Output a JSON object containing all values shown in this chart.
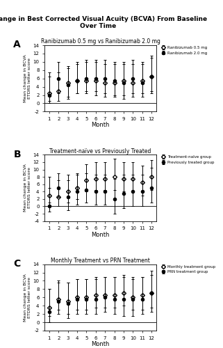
{
  "title": "Change in Best Corrected Visual Acuity (BCVA) From Baseline\nOver Time",
  "months": [
    1,
    2,
    3,
    4,
    5,
    6,
    7,
    8,
    9,
    10,
    11,
    12
  ],
  "panel_A_title": "Ranibizumab 0.5 mg vs Ranibizumab 2.0 mg",
  "A_white_mean": [
    2.5,
    3.0,
    5.0,
    5.5,
    5.5,
    5.5,
    5.0,
    5.0,
    5.5,
    5.0,
    5.5,
    6.5
  ],
  "A_white_err_lo": [
    2.0,
    2.5,
    3.5,
    3.0,
    3.0,
    3.5,
    3.5,
    3.5,
    3.5,
    3.5,
    3.0,
    3.5
  ],
  "A_white_err_hi": [
    5.0,
    4.5,
    4.0,
    4.5,
    4.5,
    4.5,
    4.5,
    4.5,
    4.5,
    4.5,
    4.5,
    5.0
  ],
  "A_black_mean": [
    2.0,
    6.0,
    4.5,
    5.5,
    6.0,
    6.0,
    6.0,
    5.5,
    5.0,
    6.0,
    5.0,
    6.5
  ],
  "A_black_err_lo": [
    2.0,
    3.5,
    3.5,
    3.0,
    3.0,
    3.0,
    3.5,
    3.5,
    4.0,
    3.5,
    3.5,
    4.0
  ],
  "A_black_err_hi": [
    4.5,
    4.0,
    4.0,
    4.0,
    4.5,
    4.5,
    4.5,
    4.5,
    4.5,
    4.5,
    4.5,
    4.5
  ],
  "A_ylim": [
    -2,
    14
  ],
  "A_yticks": [
    -2,
    0,
    2,
    4,
    6,
    8,
    10,
    12,
    14
  ],
  "A_legend1": "Ranibizumab 0.5 mg",
  "A_legend2": "Ranibizumab 2.0 mg",
  "panel_B_title": "Treatment-naïve vs Previously Treated",
  "B_white_mean": [
    3.0,
    2.5,
    4.0,
    5.0,
    7.0,
    7.5,
    7.5,
    8.0,
    7.5,
    7.5,
    6.5,
    8.0
  ],
  "B_white_err_lo": [
    2.0,
    2.5,
    3.0,
    3.0,
    3.0,
    3.0,
    3.0,
    3.5,
    3.5,
    3.5,
    3.5,
    3.5
  ],
  "B_white_err_hi": [
    5.0,
    4.5,
    4.5,
    4.0,
    4.5,
    4.5,
    4.5,
    5.0,
    4.5,
    4.5,
    4.5,
    4.5
  ],
  "B_black_mean": [
    0.0,
    5.0,
    2.5,
    4.0,
    4.5,
    4.0,
    4.0,
    2.0,
    3.5,
    4.0,
    4.0,
    5.0
  ],
  "B_black_err_lo": [
    1.5,
    2.5,
    3.5,
    3.5,
    3.5,
    3.5,
    3.5,
    4.0,
    4.0,
    4.0,
    4.0,
    4.0
  ],
  "B_black_err_hi": [
    5.0,
    4.0,
    4.5,
    4.5,
    4.5,
    4.5,
    4.5,
    5.5,
    5.0,
    4.5,
    4.5,
    5.5
  ],
  "B_ylim": [
    -4,
    14
  ],
  "B_yticks": [
    -4,
    -2,
    0,
    2,
    4,
    6,
    8,
    10,
    12,
    14
  ],
  "B_legend1": "Treatment-naïve group",
  "B_legend2": "Previously treated group",
  "panel_C_title": "Monthly Treatment vs PRN Treatment",
  "C_white_mean": [
    3.5,
    5.5,
    5.0,
    6.0,
    6.0,
    6.5,
    6.5,
    6.5,
    7.0,
    6.0,
    6.5,
    7.0
  ],
  "C_white_err_lo": [
    2.0,
    2.5,
    3.0,
    3.0,
    3.0,
    3.0,
    3.0,
    3.0,
    3.0,
    3.0,
    3.5,
    3.5
  ],
  "C_white_err_hi": [
    4.5,
    4.0,
    4.5,
    4.5,
    4.5,
    4.5,
    4.5,
    4.5,
    4.5,
    4.5,
    4.5,
    4.5
  ],
  "C_black_mean": [
    2.5,
    5.0,
    4.5,
    5.5,
    5.5,
    5.5,
    6.0,
    5.5,
    5.5,
    5.5,
    5.5,
    7.0
  ],
  "C_black_err_lo": [
    2.5,
    3.0,
    3.5,
    3.5,
    3.5,
    3.5,
    3.5,
    3.5,
    4.0,
    4.0,
    3.5,
    4.5
  ],
  "C_black_err_hi": [
    5.5,
    5.0,
    5.0,
    5.0,
    5.0,
    5.0,
    5.0,
    5.5,
    5.5,
    5.5,
    5.5,
    5.5
  ],
  "C_ylim": [
    -2,
    14
  ],
  "C_yticks": [
    -2,
    0,
    2,
    4,
    6,
    8,
    10,
    12,
    14
  ],
  "C_legend1": "Monthly treatment group",
  "C_legend2": "PRN treatment group",
  "ylabel": "Mean change in BCVA\nETDRS letter score",
  "xlabel": "Month",
  "background_color": "#ffffff"
}
